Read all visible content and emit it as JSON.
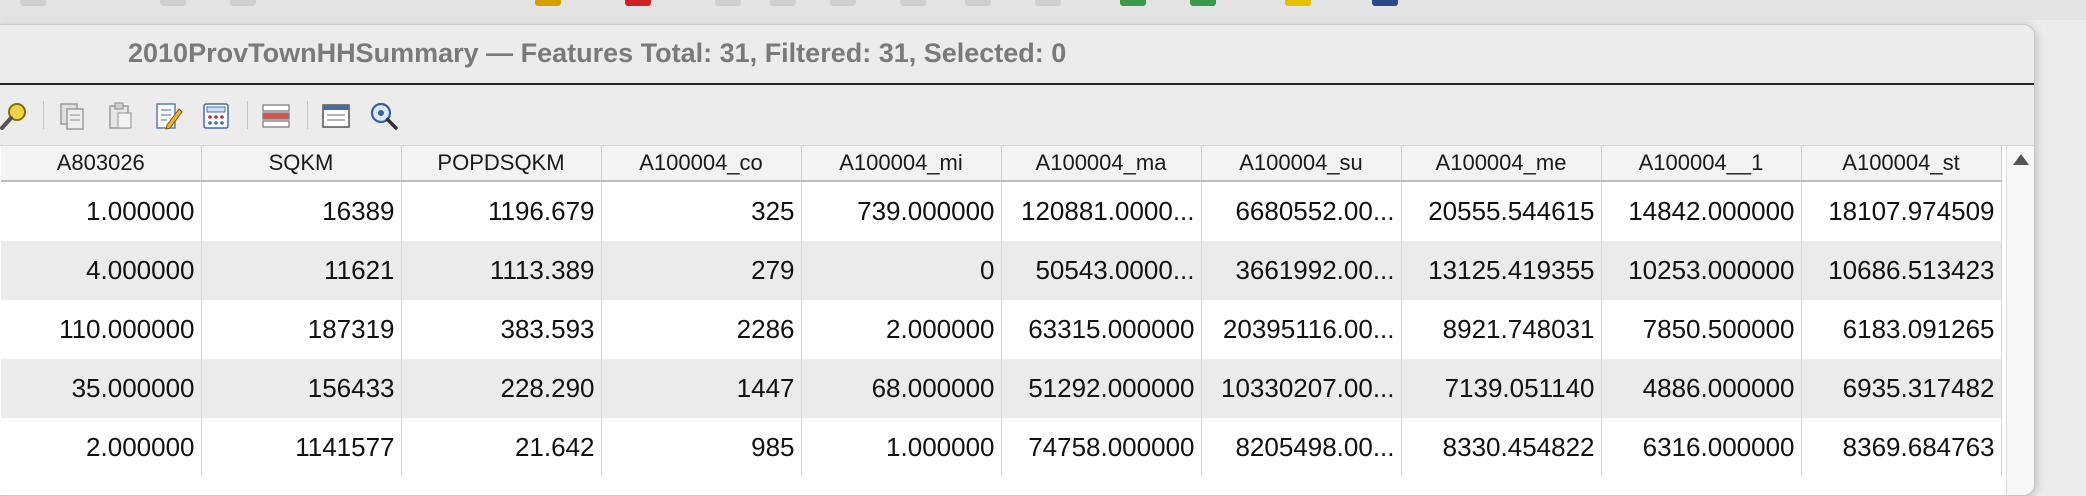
{
  "window": {
    "title": "2010ProvTownHHSummary — Features Total: 31, Filtered: 31, Selected: 0"
  },
  "toolbar": {
    "buttons": [
      {
        "icon": "select-by-expression-icon"
      },
      {
        "icon": "copy-selected-icon"
      },
      {
        "icon": "paste-icon"
      },
      {
        "icon": "toggle-editing-icon"
      },
      {
        "icon": "field-calculator-icon"
      },
      {
        "icon": "conditional-formatting-icon"
      },
      {
        "icon": "dock-table-icon"
      },
      {
        "icon": "zoom-to-selection-icon"
      }
    ]
  },
  "table": {
    "columns": [
      "A803026",
      "SQKM",
      "POPDSQKM",
      "A100004_co",
      "A100004_mi",
      "A100004_ma",
      "A100004_su",
      "A100004_me",
      "A100004__1",
      "A100004_st"
    ],
    "rows": [
      [
        "1.000000",
        "16389",
        "1196.679",
        "325",
        "739.000000",
        "120881.0000...",
        "6680552.00...",
        "20555.544615",
        "14842.000000",
        "18107.974509"
      ],
      [
        "4.000000",
        "11621",
        "1113.389",
        "279",
        "0",
        "50543.0000...",
        "3661992.00...",
        "13125.419355",
        "10253.000000",
        "10686.513423"
      ],
      [
        "110.000000",
        "187319",
        "383.593",
        "2286",
        "2.000000",
        "63315.000000",
        "20395116.00...",
        "8921.748031",
        "7850.500000",
        "6183.091265"
      ],
      [
        "35.000000",
        "156433",
        "228.290",
        "1447",
        "68.000000",
        "51292.000000",
        "10330207.00...",
        "7139.051140",
        "4886.000000",
        "6935.317482"
      ],
      [
        "2.000000",
        "1141577",
        "21.642",
        "985",
        "1.000000",
        "74758.000000",
        "8205498.00...",
        "8330.454822",
        "6316.000000",
        "8369.684763"
      ]
    ]
  }
}
